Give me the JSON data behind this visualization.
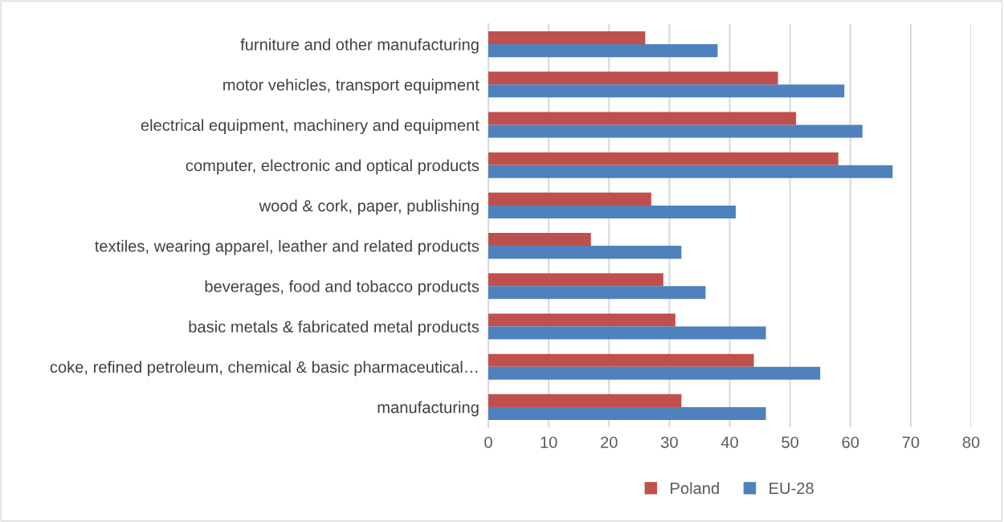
{
  "chart_data": {
    "type": "bar",
    "orientation": "horizontal",
    "categories": [
      "furniture and other manufacturing",
      "motor vehicles, transport equipment",
      "electrical equipment, machinery and equipment",
      "computer, electronic and optical products",
      "wood & cork, paper, publishing",
      "textiles, wearing apparel, leather and related products",
      "beverages, food and tobacco products",
      "basic metals & fabricated metal products",
      "coke, refined petroleum, chemical & basic pharmaceutical…",
      "manufacturing"
    ],
    "series": [
      {
        "name": "Poland",
        "color": "#c0504d",
        "values": [
          26,
          48,
          51,
          58,
          27,
          17,
          29,
          31,
          44,
          32
        ]
      },
      {
        "name": "EU-28",
        "color": "#4f81bd",
        "values": [
          38,
          59,
          62,
          67,
          41,
          32,
          36,
          46,
          55,
          46
        ]
      }
    ],
    "xlim": [
      0,
      80
    ],
    "xticks": [
      0,
      10,
      20,
      30,
      40,
      50,
      60,
      70,
      80
    ],
    "grid": "x",
    "legend": "bottom"
  }
}
